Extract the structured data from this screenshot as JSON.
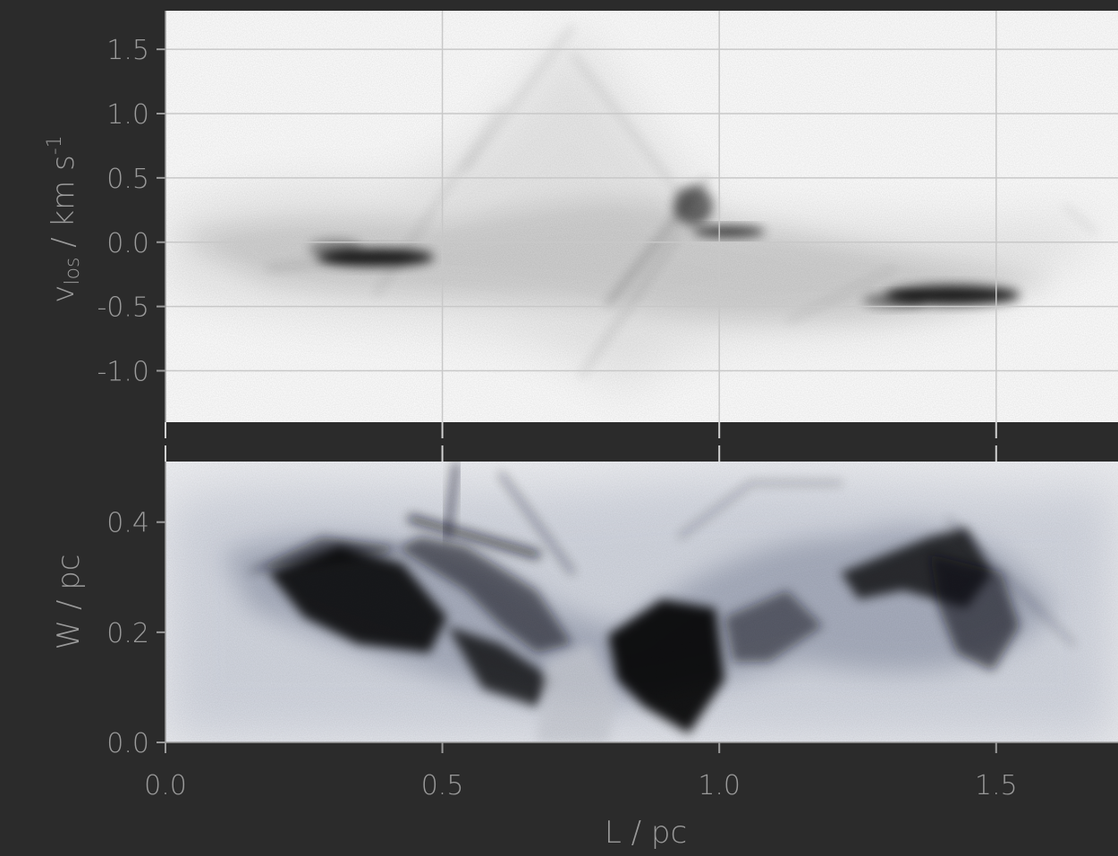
{
  "chart_data": [
    {
      "type": "heatmap",
      "panel": "top",
      "colormap": "white-to-black",
      "ylabel": "v_los / km s^-1",
      "ylabel_parts": {
        "v": "v",
        "sub": "los",
        "unit": " / km s",
        "sup": "-1"
      },
      "xlim": [
        0.0,
        1.72
      ],
      "ylim": [
        -1.4,
        1.8
      ],
      "y_ticks": [
        "1.5",
        "1.0",
        "0.5",
        "0.0",
        "-0.5",
        "-1.0"
      ],
      "y_tick_values": [
        1.5,
        1.0,
        0.5,
        0.0,
        -0.5,
        -1.0
      ],
      "grid": true,
      "features": [
        {
          "L": 0.39,
          "v": -0.14,
          "intensity": 0.9
        },
        {
          "L": 0.95,
          "v": 0.08,
          "intensity": 0.85
        },
        {
          "L": 1.4,
          "v": -0.42,
          "intensity": 0.95
        },
        {
          "L": 0.62,
          "v": 0.35,
          "intensity": 0.4
        },
        {
          "L": 0.8,
          "v": -0.3,
          "intensity": 0.45
        }
      ]
    },
    {
      "type": "heatmap",
      "panel": "bottom",
      "colormap": "white-to-black (bluish)",
      "xlabel": "L / pc",
      "ylabel": "W / pc",
      "xlim": [
        0.0,
        1.72
      ],
      "ylim": [
        0.0,
        0.51
      ],
      "x_ticks": [
        "0.0",
        "0.5",
        "1.0",
        "1.5"
      ],
      "x_tick_values": [
        0.0,
        0.5,
        1.0,
        1.5
      ],
      "y_ticks": [
        "0.4",
        "0.2",
        "0.0"
      ],
      "y_tick_values": [
        0.4,
        0.2,
        0.0
      ],
      "features": [
        {
          "L": 0.36,
          "W": 0.26,
          "intensity": 0.95
        },
        {
          "L": 0.9,
          "W": 0.17,
          "intensity": 0.95
        },
        {
          "L": 1.43,
          "W": 0.3,
          "intensity": 0.8
        },
        {
          "L": 0.55,
          "W": 0.4,
          "intensity": 0.6
        }
      ]
    }
  ]
}
